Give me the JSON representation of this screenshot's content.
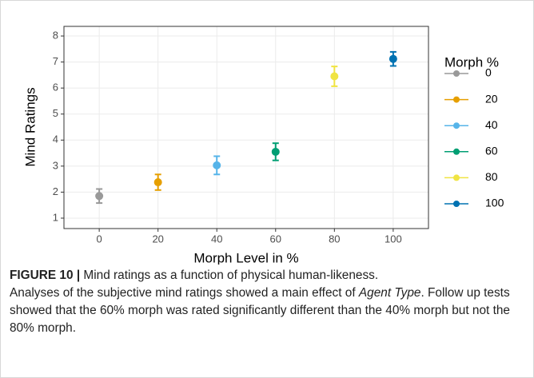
{
  "chart_data": {
    "type": "errorbar-scatter",
    "x_label": "Morph Level in %",
    "y_label": "Mind Ratings",
    "legend_title": "Morph %",
    "x": [
      0,
      20,
      40,
      60,
      80,
      100
    ],
    "values": [
      1.85,
      2.38,
      3.03,
      3.55,
      6.45,
      7.12
    ],
    "errors": [
      0.27,
      0.3,
      0.35,
      0.33,
      0.38,
      0.27
    ],
    "colors": [
      "#999999",
      "#E69F00",
      "#56B4E9",
      "#009E73",
      "#F0E442",
      "#0072B2"
    ],
    "xlim": [
      -12,
      112
    ],
    "xticks": [
      0,
      20,
      40,
      60,
      80,
      100
    ],
    "ylim": [
      0.6,
      8.37
    ],
    "yticks": [
      1,
      2,
      3,
      4,
      5,
      6,
      7,
      8
    ],
    "grid": true,
    "legend_position": "right"
  },
  "caption": {
    "label": "FIGURE 10 |",
    "text1": "Mind ratings as a function of physical human-likeness.",
    "text2": "Analyses of the subjective mind ratings showed a main effect of ",
    "emphasis": "Agent Type",
    "text3": ". Follow up tests showed that the 60% morph was rated significantly different than the 40% morph but not the 80% morph."
  }
}
